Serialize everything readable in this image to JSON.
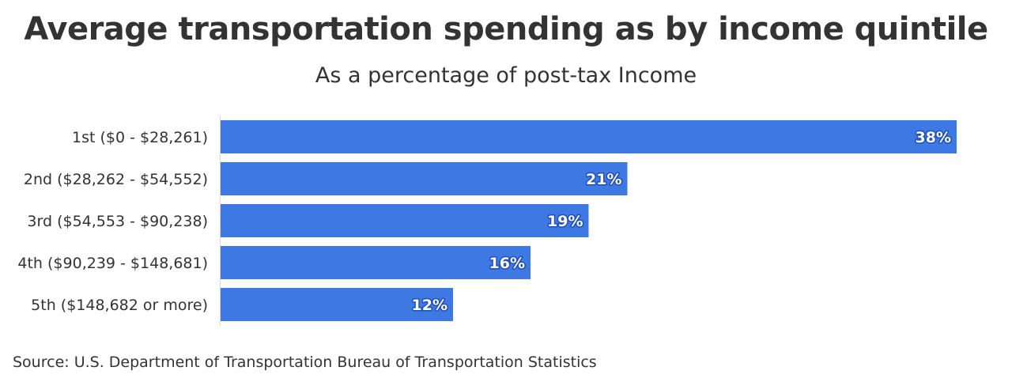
{
  "chart_data": {
    "type": "bar",
    "orientation": "horizontal",
    "title": "Average transportation spending as by income quintile",
    "subtitle": "As a percentage of post-tax Income",
    "categories": [
      "1st ($0 - $28,261)",
      "2nd ($28,262 - $54,552)",
      "3rd ($54,553 - $90,238)",
      "4th ($90,239 - $148,681)",
      "5th ($148,682 or more)"
    ],
    "values": [
      38,
      21,
      19,
      16,
      12
    ],
    "value_labels": [
      "38%",
      "21%",
      "19%",
      "16%",
      "12%"
    ],
    "xlim": [
      0,
      38
    ],
    "bar_color": "#3d78e3",
    "label_color": "#ffffff",
    "label_outline_color": "#1f4fb8"
  },
  "source": "Source: U.S. Department of Transportation Bureau of Transportation Statistics"
}
